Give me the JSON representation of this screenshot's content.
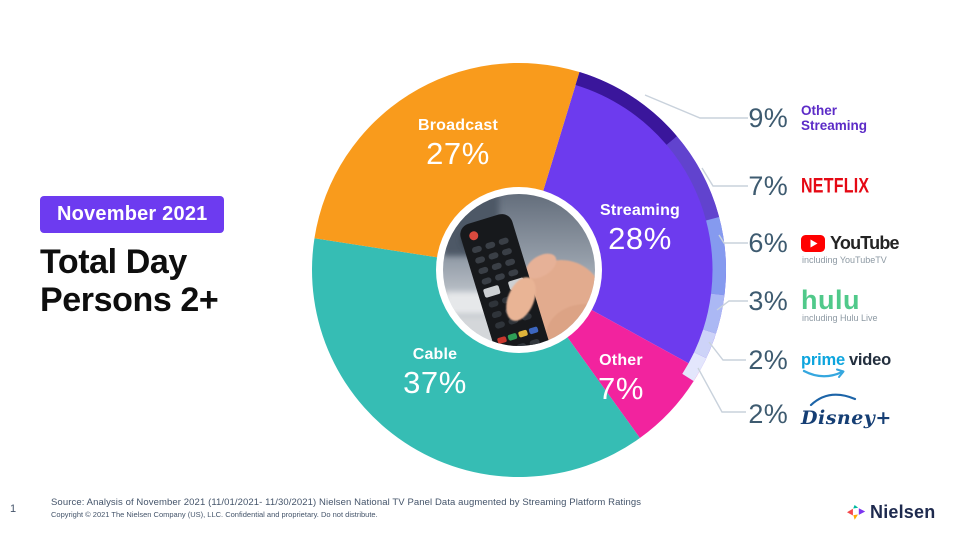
{
  "slide": {
    "badge": "November 2021",
    "title_line1": "Total Day",
    "title_line2": "Persons 2+",
    "page_number": "1",
    "source_line": "Source: Analysis of November 2021 (11/01/2021- 11/30/2021)  Nielsen National TV Panel Data augmented by Streaming Platform Ratings",
    "copyright_line": "Copyright © 2021 The Nielsen Company (US), LLC. Confidential and proprietary. Do not distribute.",
    "brand_wordmark": "Nielsen"
  },
  "chart_data": {
    "type": "pie",
    "title": "Share of total TV usage by category — Total Day, Persons 2+, November 2021",
    "center_image": "hand holding TV remote control",
    "start_angle_deg": 17,
    "segments": [
      {
        "label": "Streaming",
        "value": 28,
        "pct_label": "28%",
        "color": "#6D3BEE"
      },
      {
        "label": "Other",
        "value": 7,
        "pct_label": "7%",
        "color": "#F2239E"
      },
      {
        "label": "Cable",
        "value": 37,
        "pct_label": "37%",
        "color": "#36BDB4"
      },
      {
        "label": "Broadcast",
        "value": 27,
        "pct_label": "27%",
        "color": "#F99B1C"
      }
    ],
    "streaming_breakdown": [
      {
        "label": "Other Streaming",
        "value": 9,
        "pct_label": "9%",
        "color": "#3A169B"
      },
      {
        "label": "Netflix",
        "value": 7,
        "pct_label": "7%",
        "color": "#6143CE"
      },
      {
        "label": "YouTube",
        "value": 6,
        "pct_label": "6%",
        "color": "#859AEF",
        "note": "including YouTubeTV"
      },
      {
        "label": "Hulu",
        "value": 3,
        "pct_label": "3%",
        "color": "#ABB8F4",
        "note": "including Hulu Live"
      },
      {
        "label": "Prime Video",
        "value": 2,
        "pct_label": "2%",
        "color": "#CDD3F8"
      },
      {
        "label": "Disney+",
        "value": 2,
        "pct_label": "2%",
        "color": "#E3E6FC"
      }
    ]
  },
  "legend": {
    "other_streaming": {
      "pct": "9%",
      "line1": "Other",
      "line2": "Streaming"
    },
    "netflix": {
      "pct": "7%",
      "wordmark": "NETFLIX"
    },
    "youtube": {
      "pct": "6%",
      "wordmark": "YouTube",
      "note": "including YouTubeTV"
    },
    "hulu": {
      "pct": "3%",
      "wordmark": "hulu",
      "note": "including Hulu Live"
    },
    "prime_video": {
      "pct": "2%",
      "word1": "prime",
      "word2": "video"
    },
    "disney_plus": {
      "pct": "2%",
      "wordmark": "Disney+"
    }
  },
  "colors": {
    "badge_bg": "#6D3BF0",
    "legend_pct_text": "#3E5B70",
    "other_streaming_text": "#5C2BC7",
    "netflix_red": "#E50914",
    "youtube_red": "#FF0000",
    "hulu_green": "#50C98A",
    "prime_blue": "#0DA5DE",
    "disney_blue": "#153E74",
    "leader_line": "#C9D2DC",
    "footer_text": "#44546A"
  }
}
